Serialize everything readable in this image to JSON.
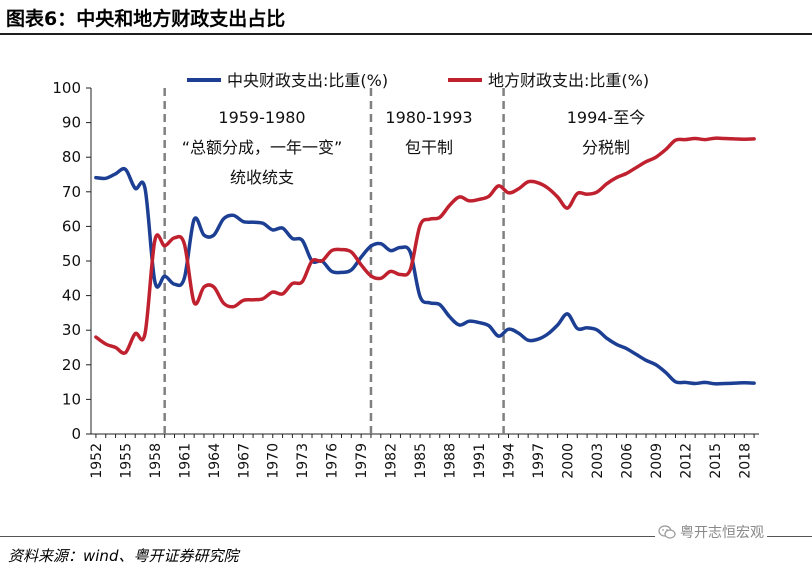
{
  "header": {
    "title": "图表6：中央和地方财政支出占比"
  },
  "footer": {
    "source": "资料来源：wind、粤开证券研究院",
    "watermark": "粤开志恒宏观",
    "watermark_icon": "wechat-icon"
  },
  "chart_data": {
    "type": "line",
    "title": "图表6：中央和地方财政支出占比",
    "xlabel": "",
    "ylabel": "",
    "ylim": [
      0,
      100
    ],
    "yticks": [
      0,
      10,
      20,
      30,
      40,
      50,
      60,
      70,
      80,
      90,
      100
    ],
    "xticks": [
      "1952",
      "1955",
      "1958",
      "1961",
      "1964",
      "1967",
      "1970",
      "1973",
      "1976",
      "1979",
      "1982",
      "1985",
      "1988",
      "1991",
      "1994",
      "1997",
      "2000",
      "2003",
      "2006",
      "2009",
      "2012",
      "2015",
      "2018"
    ],
    "grid": false,
    "legend_position": "top",
    "x": [
      1952,
      1953,
      1954,
      1955,
      1956,
      1957,
      1958,
      1959,
      1960,
      1961,
      1962,
      1963,
      1964,
      1965,
      1966,
      1967,
      1968,
      1969,
      1970,
      1971,
      1972,
      1973,
      1974,
      1975,
      1976,
      1977,
      1978,
      1979,
      1980,
      1981,
      1982,
      1983,
      1984,
      1985,
      1986,
      1987,
      1988,
      1989,
      1990,
      1991,
      1992,
      1993,
      1994,
      1995,
      1996,
      1997,
      1998,
      1999,
      2000,
      2001,
      2002,
      2003,
      2004,
      2005,
      2006,
      2007,
      2008,
      2009,
      2010,
      2011,
      2012,
      2013,
      2014,
      2015,
      2016,
      2017,
      2018,
      2019
    ],
    "series": [
      {
        "name": "中央财政支出:比重(%)",
        "color": "#1c3f94",
        "values": [
          74.1,
          73.9,
          75.2,
          76.5,
          71.0,
          71.0,
          44.0,
          45.6,
          43.3,
          45.0,
          62.0,
          57.5,
          57.5,
          62.2,
          63.2,
          61.4,
          61.2,
          60.9,
          59.0,
          59.5,
          56.5,
          56.0,
          50.0,
          50.0,
          47.0,
          46.7,
          47.4,
          51.1,
          54.3,
          55.0,
          53.0,
          53.9,
          52.5,
          39.7,
          37.9,
          37.4,
          33.9,
          31.5,
          32.6,
          32.2,
          31.3,
          28.3,
          30.3,
          29.2,
          27.1,
          27.4,
          28.9,
          31.5,
          34.7,
          30.5,
          30.7,
          30.1,
          27.7,
          25.9,
          24.7,
          23.0,
          21.3,
          20.0,
          17.8,
          15.1,
          14.9,
          14.6,
          14.9,
          14.5,
          14.6,
          14.7,
          14.8,
          14.7
        ]
      },
      {
        "name": "地方财政支出:比重(%)",
        "color": "#c0212f",
        "values": [
          28.0,
          26.0,
          25.0,
          23.5,
          29.0,
          29.0,
          56.0,
          54.4,
          56.7,
          55.0,
          38.0,
          42.5,
          42.5,
          37.8,
          36.8,
          38.6,
          38.8,
          39.1,
          41.0,
          40.5,
          43.5,
          44.0,
          50.0,
          50.0,
          53.0,
          53.3,
          52.6,
          48.9,
          45.7,
          45.0,
          47.0,
          46.1,
          47.5,
          60.3,
          62.1,
          62.6,
          66.1,
          68.5,
          67.4,
          67.8,
          68.7,
          71.7,
          69.7,
          70.8,
          72.9,
          72.6,
          71.1,
          68.5,
          65.3,
          69.5,
          69.3,
          69.9,
          72.3,
          74.1,
          75.3,
          77.0,
          78.7,
          80.0,
          82.2,
          84.9,
          85.1,
          85.4,
          85.1,
          85.5,
          85.4,
          85.3,
          85.2,
          85.3
        ]
      }
    ],
    "dividers": [
      1959,
      1980,
      1993.5
    ],
    "annotations": [
      {
        "lines": [
          "1959-1980",
          "“总额分成，一年一变”",
          "统收统支"
        ]
      },
      {
        "lines": [
          "1980-1993",
          "包干制"
        ]
      },
      {
        "lines": [
          "1994-至今",
          "分税制"
        ]
      }
    ]
  }
}
